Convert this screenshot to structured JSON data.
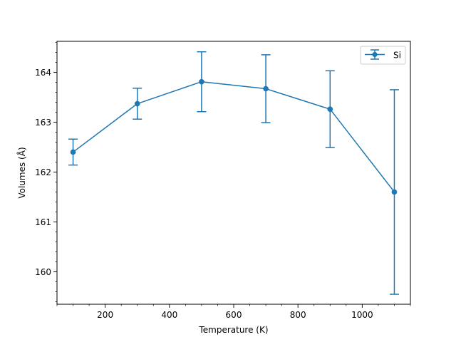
{
  "chart_data": {
    "type": "line",
    "title": "",
    "xlabel": "Temperature (K)",
    "ylabel": "Volumes (Å)",
    "xlim": [
      50,
      1150
    ],
    "ylim": [
      159.35,
      164.62
    ],
    "xticks": [
      200,
      400,
      600,
      800,
      1000
    ],
    "yticks": [
      160,
      161,
      162,
      163,
      164
    ],
    "x_minor_step": 50,
    "y_minor_step": 0.2,
    "grid": false,
    "legend_position": "top-right",
    "series": [
      {
        "name": "Si",
        "color": "#1f77b4",
        "marker": "circle",
        "x": [
          100,
          300,
          500,
          700,
          900,
          1100
        ],
        "y": [
          162.4,
          163.37,
          163.81,
          163.67,
          163.26,
          161.6
        ],
        "yerr": [
          0.26,
          0.31,
          0.6,
          0.68,
          0.77,
          2.05
        ]
      }
    ]
  }
}
